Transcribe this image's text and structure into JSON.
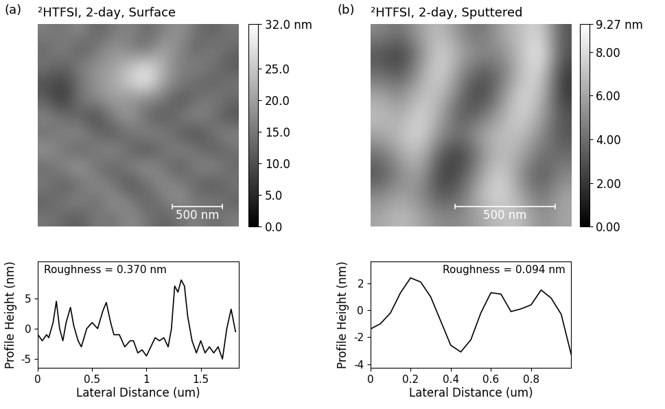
{
  "chart_data": [
    {
      "type": "heatmap",
      "panel": "(a)",
      "title": "²HTFSI, 2-day, Surface",
      "xlim": [
        0,
        2000
      ],
      "ylim": [
        0,
        2000
      ],
      "tick_labels": false,
      "color": "gray",
      "scale_bar": {
        "length": 500,
        "label": "500 nm"
      },
      "cells": [
        [
          16,
          14,
          18,
          12,
          15,
          17,
          13,
          16,
          19,
          14,
          12,
          15
        ],
        [
          13,
          17,
          11,
          15,
          19,
          16,
          14,
          21,
          17,
          12,
          16,
          13
        ],
        [
          15,
          12,
          16,
          18,
          20,
          24,
          28,
          22,
          15,
          17,
          14,
          11
        ],
        [
          10,
          8,
          14,
          19,
          21,
          26,
          30,
          20,
          16,
          13,
          12,
          15
        ],
        [
          12,
          6,
          15,
          17,
          20,
          18,
          17,
          15,
          10,
          14,
          16,
          13
        ],
        [
          17,
          14,
          12,
          9,
          16,
          20,
          13,
          11,
          15,
          18,
          14,
          10
        ],
        [
          14,
          16,
          18,
          13,
          11,
          14,
          17,
          16,
          12,
          9,
          15,
          17
        ],
        [
          19,
          15,
          12,
          16,
          18,
          13,
          10,
          14,
          17,
          15,
          11,
          14
        ],
        [
          13,
          17,
          20,
          14,
          12,
          16,
          19,
          15,
          11,
          16,
          18,
          13
        ],
        [
          16,
          11,
          14,
          18,
          15,
          10,
          14,
          18,
          16,
          13,
          10,
          15
        ],
        [
          12,
          15,
          17,
          13,
          19,
          16,
          12,
          15,
          19,
          14,
          16,
          12
        ],
        [
          15,
          13,
          11,
          16,
          14,
          18,
          15,
          12,
          14,
          17,
          13,
          16
        ]
      ],
      "colorbar": {
        "range": [
          0,
          32
        ],
        "ticks": [
          {
            "value": 0,
            "label": "0.0"
          },
          {
            "value": 5,
            "label": "5.0"
          },
          {
            "value": 10,
            "label": "10.0"
          },
          {
            "value": 15,
            "label": "15.0"
          },
          {
            "value": 20,
            "label": "20.0"
          },
          {
            "value": 25,
            "label": "25.0"
          },
          {
            "value": 32,
            "label": "32.0 nm"
          }
        ]
      }
    },
    {
      "type": "heatmap",
      "panel": "(b)",
      "title": "²HTFSI, 2-day, Sputtered",
      "xlim": [
        0,
        1000
      ],
      "ylim": [
        0,
        1000
      ],
      "tick_labels": false,
      "color": "gray",
      "scale_bar": {
        "length": 500,
        "label": "500 nm"
      },
      "cells": [
        [
          5,
          4,
          6,
          7,
          5,
          4,
          6,
          7,
          8,
          3
        ],
        [
          3,
          2,
          5,
          8,
          6,
          5,
          5,
          7,
          9,
          3
        ],
        [
          4,
          3,
          6,
          8,
          5,
          3,
          4,
          7,
          8,
          2
        ],
        [
          6,
          5,
          7,
          7,
          4,
          2,
          5,
          8,
          7,
          2
        ],
        [
          7,
          6,
          8,
          6,
          3,
          4,
          6,
          8,
          6,
          3
        ],
        [
          6,
          7,
          8,
          5,
          4,
          6,
          7,
          7,
          5,
          3
        ],
        [
          4,
          6,
          7,
          3,
          2,
          5,
          7,
          6,
          4,
          4
        ],
        [
          3,
          5,
          6,
          2,
          3,
          6,
          8,
          5,
          3,
          5
        ],
        [
          5,
          6,
          5,
          3,
          4,
          7,
          8,
          6,
          4,
          6
        ],
        [
          6,
          7,
          6,
          5,
          5,
          6,
          7,
          7,
          5,
          6
        ]
      ],
      "colorbar": {
        "range": [
          0,
          9.27
        ],
        "ticks": [
          {
            "value": 0,
            "label": "0.00"
          },
          {
            "value": 2,
            "label": "2.00"
          },
          {
            "value": 4,
            "label": "4.00"
          },
          {
            "value": 6,
            "label": "6.00"
          },
          {
            "value": 8,
            "label": "8.00"
          },
          {
            "value": 9.27,
            "label": "9.27 nm"
          }
        ]
      }
    },
    {
      "type": "line",
      "annotation": "Roughness = 0.370 nm",
      "color": "#000000",
      "x_label": "Lateral Distance (um)",
      "y_label": "Profile Height (nm)",
      "x": [
        0,
        0.04,
        0.08,
        0.1,
        0.14,
        0.17,
        0.2,
        0.23,
        0.26,
        0.3,
        0.33,
        0.37,
        0.4,
        0.45,
        0.5,
        0.55,
        0.6,
        0.63,
        0.67,
        0.7,
        0.75,
        0.8,
        0.85,
        0.88,
        0.92,
        0.96,
        1.0,
        1.04,
        1.08,
        1.12,
        1.16,
        1.2,
        1.23,
        1.26,
        1.29,
        1.32,
        1.35,
        1.38,
        1.42,
        1.46,
        1.5,
        1.54,
        1.58,
        1.62,
        1.66,
        1.7,
        1.74,
        1.78,
        1.82
      ],
      "values": [
        -1,
        -2,
        -1,
        -1.5,
        1,
        4.5,
        0,
        -2,
        1,
        3.5,
        0.5,
        -2,
        -3,
        0,
        1,
        0,
        3,
        4.3,
        1,
        -1,
        -1,
        -3,
        -2,
        -2,
        -4,
        -3.5,
        -4.5,
        -3,
        -1.5,
        -2,
        -1.5,
        -3,
        0,
        7,
        6,
        8,
        7,
        2,
        -2,
        -4,
        -2,
        -4,
        -3,
        -4,
        -3,
        -5,
        0,
        3.2,
        -0.5
      ],
      "xlim": [
        0,
        1.85
      ],
      "ylim": [
        -6.5,
        11
      ],
      "xticks": [
        0,
        0.5,
        1,
        1.5
      ],
      "yticks": [
        -5,
        0,
        5
      ]
    },
    {
      "type": "line",
      "annotation": "Roughness = 0.094 nm",
      "color": "#000000",
      "x_label": "Lateral Distance (um)",
      "y_label": "Profile Height (nm)",
      "x": [
        0,
        0.05,
        0.1,
        0.15,
        0.2,
        0.25,
        0.3,
        0.35,
        0.4,
        0.45,
        0.5,
        0.55,
        0.6,
        0.65,
        0.7,
        0.75,
        0.8,
        0.85,
        0.9,
        0.95,
        1.0
      ],
      "values": [
        -1.4,
        -1.0,
        -0.2,
        1.3,
        2.4,
        2.1,
        1.0,
        -0.8,
        -2.6,
        -3.1,
        -2.2,
        -0.2,
        1.3,
        1.2,
        -0.1,
        0.1,
        0.4,
        1.5,
        0.9,
        -0.3,
        -3.3
      ],
      "xlim": [
        0,
        1.0
      ],
      "ylim": [
        -4.3,
        3.6
      ],
      "xticks": [
        0,
        0.2,
        0.4,
        0.6,
        0.8
      ],
      "yticks": [
        -4,
        -2,
        0,
        2
      ]
    }
  ]
}
